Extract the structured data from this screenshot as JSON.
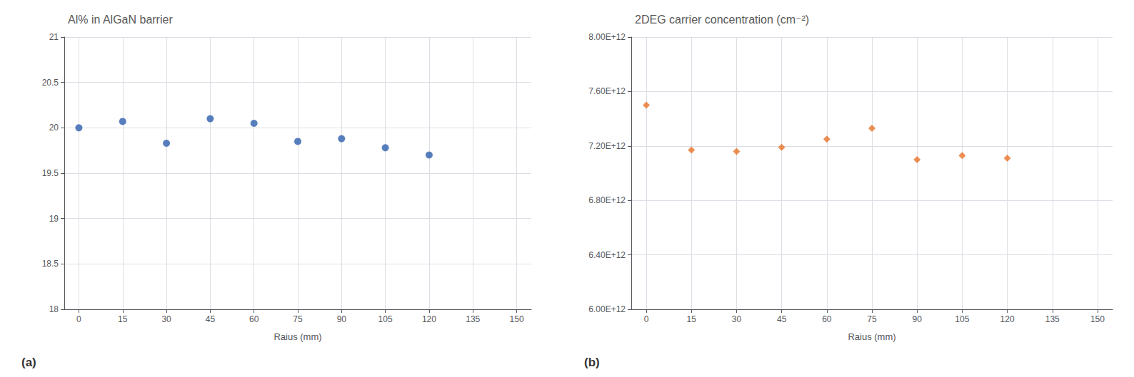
{
  "chart_data": [
    {
      "type": "scatter",
      "title": "Al% in AlGaN barrier",
      "xlabel": "Raius (mm)",
      "x": [
        0,
        15,
        30,
        45,
        60,
        75,
        90,
        105,
        120
      ],
      "values": [
        20.0,
        20.07,
        19.83,
        20.1,
        20.05,
        19.85,
        19.88,
        19.78,
        19.7
      ],
      "color": "#2E5FAC",
      "marker": "circle",
      "xlim": [
        -5,
        155
      ],
      "xticks": [
        0,
        15,
        30,
        45,
        60,
        75,
        90,
        105,
        120,
        135,
        150
      ],
      "ylim": [
        18,
        21
      ],
      "yticks": [
        18,
        18.5,
        19,
        19.5,
        20,
        20.5,
        21
      ],
      "grid": true,
      "annotations": [
        "(a)"
      ]
    },
    {
      "type": "scatter",
      "title": "2DEG carrier concentration (cm⁻²)",
      "xlabel": "Raius (mm)",
      "x": [
        0,
        15,
        30,
        45,
        60,
        75,
        90,
        105,
        120
      ],
      "values": [
        7500000000000.0,
        7170000000000.0,
        7160000000000.0,
        7190000000000.0,
        7250000000000.0,
        7330000000000.0,
        7100000000000.0,
        7130000000000.0,
        7110000000000.0
      ],
      "color": "#E8732A",
      "marker": "diamond",
      "xlim": [
        -5,
        155
      ],
      "xticks": [
        0,
        15,
        30,
        45,
        60,
        75,
        90,
        105,
        120,
        135,
        150
      ],
      "ylim": [
        6000000000000.0,
        8000000000000.0
      ],
      "yticks": [
        {
          "value": 6000000000000.0,
          "label": "6.00E+12"
        },
        {
          "value": 6400000000000.0,
          "label": "6.40E+12"
        },
        {
          "value": 6800000000000.0,
          "label": "6.80E+12"
        },
        {
          "value": 7200000000000.0,
          "label": "7.20E+12"
        },
        {
          "value": 7600000000000.0,
          "label": "7.60E+12"
        },
        {
          "value": 8000000000000.0,
          "label": "8.00E+12"
        }
      ],
      "grid": true,
      "annotations": [
        "(b)"
      ]
    }
  ]
}
